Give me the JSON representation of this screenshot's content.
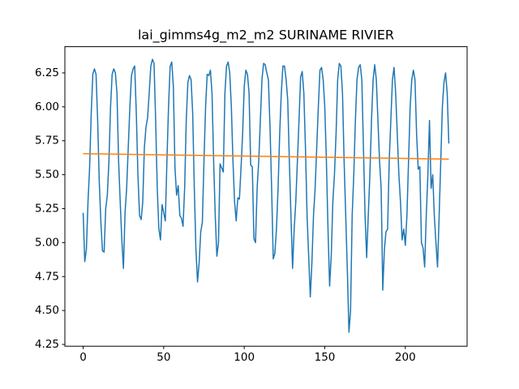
{
  "chart_data": {
    "type": "line",
    "title": "lai_gimms4g_m2_m2 SURINAME RIVIER",
    "xlim": [
      -11.35,
      238.35
    ],
    "ylim": [
      4.237,
      6.443
    ],
    "xticks": [
      0,
      50,
      100,
      150,
      200
    ],
    "yticks": [
      4.25,
      {
        "value": 4.5,
        "label": "4.50"
      },
      4.75,
      {
        "value": 5,
        "label": "5.00"
      },
      5.25,
      {
        "value": 5.5,
        "label": "5.50"
      },
      5.75,
      {
        "value": 6,
        "label": "6.00"
      },
      6.25
    ],
    "grid": false,
    "series": [
      {
        "color": "#1f77b4",
        "x": [
          0,
          1,
          2,
          3,
          4,
          5,
          6,
          7,
          8,
          9,
          10,
          11,
          12,
          13,
          14,
          15,
          16,
          17,
          18,
          19,
          20,
          21,
          22,
          23,
          24,
          25,
          26,
          27,
          28,
          29,
          30,
          31,
          32,
          33,
          34,
          35,
          36,
          37,
          38,
          39,
          40,
          41,
          42,
          43,
          44,
          45,
          46,
          47,
          48,
          49,
          50,
          51,
          52,
          53,
          54,
          55,
          56,
          57,
          58,
          59,
          60,
          61,
          62,
          63,
          64,
          65,
          66,
          67,
          68,
          69,
          70,
          71,
          72,
          73,
          74,
          75,
          76,
          77,
          78,
          79,
          80,
          81,
          82,
          83,
          84,
          85,
          86,
          87,
          88,
          89,
          90,
          91,
          92,
          93,
          94,
          95,
          96,
          97,
          98,
          99,
          100,
          101,
          102,
          103,
          104,
          105,
          106,
          107,
          108,
          109,
          110,
          111,
          112,
          113,
          114,
          115,
          116,
          117,
          118,
          119,
          120,
          121,
          122,
          123,
          124,
          125,
          126,
          127,
          128,
          129,
          130,
          131,
          132,
          133,
          134,
          135,
          136,
          137,
          138,
          139,
          140,
          141,
          142,
          143,
          144,
          145,
          146,
          147,
          148,
          149,
          150,
          151,
          152,
          153,
          154,
          155,
          156,
          157,
          158,
          159,
          160,
          161,
          162,
          163,
          164,
          165,
          166,
          167,
          168,
          169,
          170,
          171,
          172,
          173,
          174,
          175,
          176,
          177,
          178,
          179,
          180,
          181,
          182,
          183,
          184,
          185,
          186,
          187,
          188,
          189,
          190,
          191,
          192,
          193,
          194,
          195,
          196,
          197,
          198,
          199,
          200,
          201,
          202,
          203,
          204,
          205,
          206,
          207,
          208,
          209,
          210,
          211,
          212,
          213,
          214,
          215,
          216,
          217,
          218,
          219,
          220,
          221,
          222,
          223,
          224,
          225,
          226,
          227
        ],
        "values": [
          5.22,
          4.86,
          4.95,
          5.3,
          5.55,
          5.95,
          6.24,
          6.28,
          6.24,
          5.9,
          5.45,
          5.15,
          4.94,
          4.93,
          5.25,
          5.35,
          5.6,
          6.0,
          6.24,
          6.28,
          6.25,
          6.1,
          5.6,
          5.3,
          5.02,
          4.81,
          5.22,
          5.4,
          5.7,
          6.0,
          6.23,
          6.28,
          6.3,
          5.95,
          5.5,
          5.2,
          5.17,
          5.3,
          5.7,
          5.85,
          5.92,
          6.1,
          6.3,
          6.35,
          6.32,
          5.9,
          5.4,
          5.1,
          5.02,
          5.28,
          5.22,
          5.16,
          5.6,
          6.0,
          6.3,
          6.33,
          6.15,
          5.55,
          5.35,
          5.42,
          5.2,
          5.18,
          5.12,
          5.4,
          5.9,
          6.18,
          6.23,
          6.2,
          5.95,
          5.4,
          4.95,
          4.71,
          4.85,
          5.08,
          5.15,
          5.6,
          6.0,
          6.24,
          6.23,
          6.27,
          6.1,
          5.6,
          5.2,
          4.9,
          5.0,
          5.58,
          5.55,
          5.52,
          6.1,
          6.3,
          6.33,
          6.25,
          6.0,
          5.6,
          5.3,
          5.16,
          5.33,
          5.32,
          5.55,
          5.8,
          6.15,
          6.27,
          6.24,
          6.1,
          5.57,
          5.56,
          5.03,
          5.0,
          5.4,
          5.6,
          5.9,
          6.2,
          6.32,
          6.31,
          6.25,
          6.2,
          5.85,
          5.4,
          4.88,
          4.92,
          5.1,
          5.4,
          5.8,
          6.1,
          6.3,
          6.3,
          6.2,
          6.05,
          5.6,
          5.2,
          4.81,
          5.1,
          5.3,
          5.6,
          5.9,
          6.22,
          6.26,
          6.1,
          5.7,
          5.2,
          4.9,
          4.6,
          4.85,
          5.2,
          5.4,
          5.7,
          6.0,
          6.27,
          6.29,
          6.2,
          6.0,
          5.6,
          5.1,
          4.68,
          4.9,
          5.3,
          5.5,
          5.8,
          6.2,
          6.32,
          6.3,
          6.1,
          5.6,
          5.2,
          4.8,
          4.34,
          4.5,
          5.2,
          5.5,
          5.9,
          6.2,
          6.29,
          6.31,
          6.2,
          5.7,
          5.2,
          4.89,
          5.2,
          5.5,
          5.9,
          6.2,
          6.31,
          6.2,
          5.9,
          5.6,
          5.4,
          4.65,
          4.95,
          5.08,
          5.1,
          5.6,
          5.9,
          6.2,
          6.29,
          6.1,
          5.8,
          5.5,
          5.3,
          5.02,
          5.1,
          4.98,
          5.2,
          5.6,
          6.0,
          6.2,
          6.27,
          6.2,
          5.8,
          5.54,
          5.56,
          5.0,
          4.96,
          4.82,
          5.2,
          5.5,
          5.9,
          5.4,
          5.5,
          5.2,
          5.0,
          4.82,
          5.2,
          5.6,
          6.0,
          6.18,
          6.25,
          6.1,
          5.73
        ]
      },
      {
        "color": "#ff7f0e",
        "x": [
          0,
          227
        ],
        "values": [
          5.655,
          5.615
        ]
      }
    ]
  }
}
